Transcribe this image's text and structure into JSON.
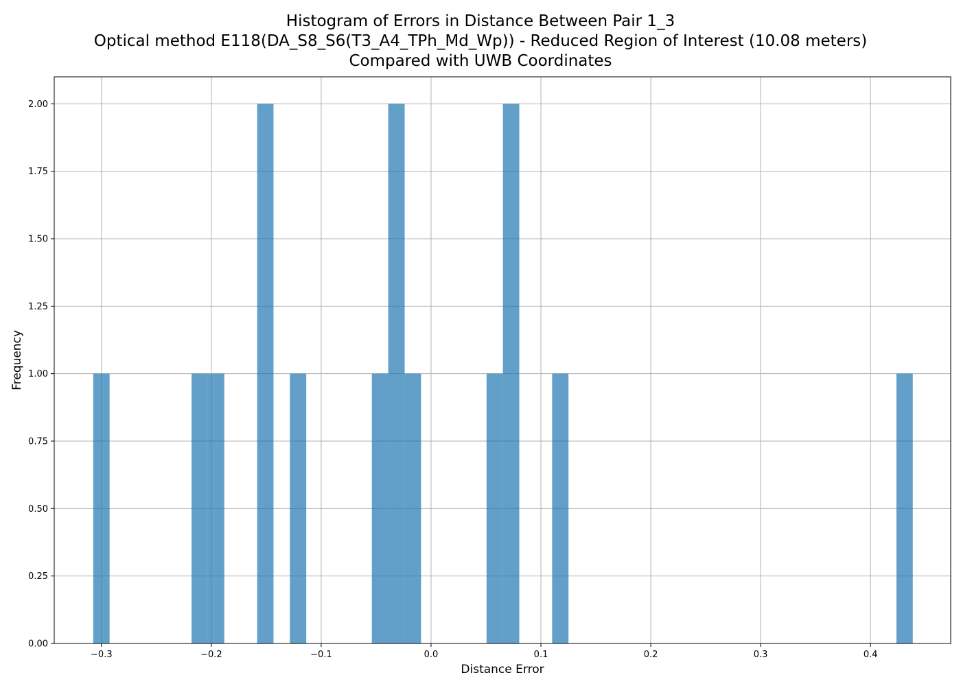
{
  "chart_data": {
    "type": "bar",
    "title_lines": [
      "Histogram of Errors in Distance Between Pair 1_3",
      "Optical method E118(DA_S8_S6(T3_A4_TPh_Md_Wp)) - Reduced Region of Interest (10.08 meters)",
      "Compared with UWB Coordinates"
    ],
    "xlabel": "Distance Error",
    "ylabel": "Frequency",
    "xlim": [
      -0.343,
      0.473
    ],
    "ylim": [
      0,
      2.1
    ],
    "grid": true,
    "x_ticks": [
      {
        "value": -0.3,
        "label": "−0.3"
      },
      {
        "value": -0.2,
        "label": "−0.2"
      },
      {
        "value": -0.1,
        "label": "−0.1"
      },
      {
        "value": 0.0,
        "label": "0.0"
      },
      {
        "value": 0.1,
        "label": "0.1"
      },
      {
        "value": 0.2,
        "label": "0.2"
      },
      {
        "value": 0.3,
        "label": "0.3"
      },
      {
        "value": 0.4,
        "label": "0.4"
      }
    ],
    "y_ticks": [
      {
        "value": 0.0,
        "label": "0.00"
      },
      {
        "value": 0.25,
        "label": "0.25"
      },
      {
        "value": 0.5,
        "label": "0.50"
      },
      {
        "value": 0.75,
        "label": "0.75"
      },
      {
        "value": 1.0,
        "label": "1.00"
      },
      {
        "value": 1.25,
        "label": "1.25"
      },
      {
        "value": 1.5,
        "label": "1.50"
      },
      {
        "value": 1.75,
        "label": "1.75"
      },
      {
        "value": 2.0,
        "label": "2.00"
      }
    ],
    "bins": [
      {
        "x0": -0.3075,
        "x1": -0.2926,
        "count": 1
      },
      {
        "x0": -0.218,
        "x1": -0.2031,
        "count": 1
      },
      {
        "x0": -0.2031,
        "x1": -0.1882,
        "count": 1
      },
      {
        "x0": -0.1583,
        "x1": -0.1434,
        "count": 2
      },
      {
        "x0": -0.1285,
        "x1": -0.1136,
        "count": 1
      },
      {
        "x0": -0.0539,
        "x1": -0.039,
        "count": 1
      },
      {
        "x0": -0.039,
        "x1": -0.024,
        "count": 2
      },
      {
        "x0": -0.024,
        "x1": -0.0091,
        "count": 1
      },
      {
        "x0": 0.0505,
        "x1": 0.0654,
        "count": 1
      },
      {
        "x0": 0.0654,
        "x1": 0.0803,
        "count": 2
      },
      {
        "x0": 0.1102,
        "x1": 0.1251,
        "count": 1
      },
      {
        "x0": 0.4236,
        "x1": 0.4385,
        "count": 1
      }
    ],
    "bar_color": "#1f77b4"
  }
}
